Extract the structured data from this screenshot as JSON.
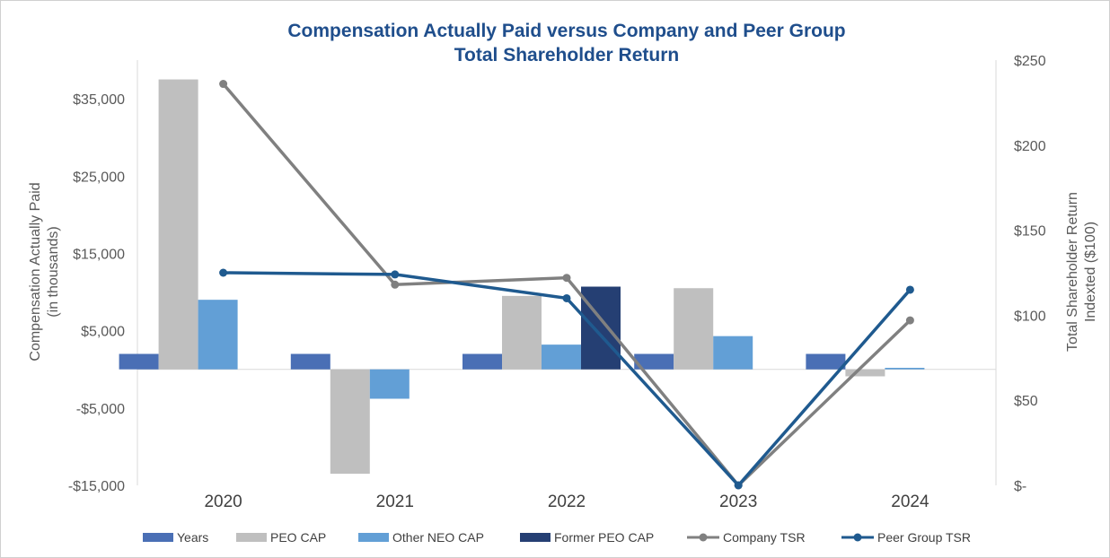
{
  "chart_data": {
    "type": "bar",
    "title": "Compensation Actually Paid versus Company and Peer Group",
    "subtitle": "Total Shareholder Return",
    "categories": [
      "2020",
      "2021",
      "2022",
      "2023",
      "2024"
    ],
    "ylabel_left": [
      "Compensation Actually Paid",
      "(in thousands)"
    ],
    "ylabel_right": [
      "Total Shareholder Return",
      "Indexted ($100)"
    ],
    "ylim_left": [
      -15000,
      40000
    ],
    "yticks_left": [
      -15000,
      -5000,
      5000,
      15000,
      25000,
      35000
    ],
    "ytick_labels_left": [
      "-$15,000",
      "-$5,000",
      "$5,000",
      "$15,000",
      "$25,000",
      "$35,000"
    ],
    "ylim_right": [
      0,
      250
    ],
    "yticks_right": [
      0,
      50,
      100,
      150,
      200,
      250
    ],
    "ytick_labels_right": [
      "$-",
      "$50",
      "$100",
      "$150",
      "$200",
      "$250"
    ],
    "bar_series": [
      {
        "name": "Years",
        "color": "#4a6fb5",
        "values": [
          2020,
          2021,
          2022,
          2023,
          2024
        ]
      },
      {
        "name": "PEO CAP",
        "color": "#bfbfbf",
        "values": [
          37500,
          -13500,
          9500,
          10500,
          -900
        ]
      },
      {
        "name": "Other NEO CAP",
        "color": "#629fd6",
        "values": [
          9000,
          -3800,
          3200,
          4300,
          200
        ]
      },
      {
        "name": "Former PEO CAP",
        "color": "#253f73",
        "values": [
          null,
          null,
          10700,
          null,
          null
        ]
      }
    ],
    "line_series": [
      {
        "name": "Company TSR",
        "color": "#808080",
        "values": [
          236,
          118,
          122,
          0,
          97
        ]
      },
      {
        "name": "Peer Group TSR",
        "color": "#1f5a8f",
        "values": [
          125,
          124,
          110,
          0,
          115
        ]
      }
    ],
    "years_display_value": 2000,
    "legend_position": "bottom"
  }
}
